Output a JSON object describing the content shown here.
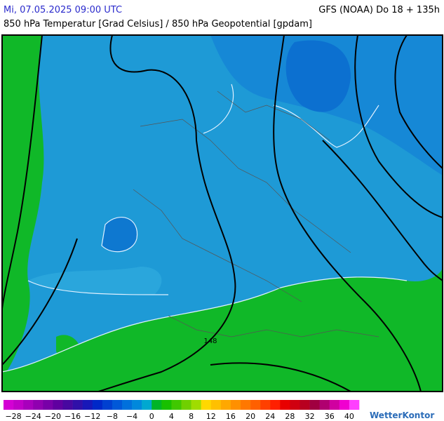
{
  "header": {
    "valid_time": "Mi, 07.05.2025 09:00 UTC",
    "model_run": "GFS (NOAA) Do 18 + 135h",
    "parameter": "850 hPa Temperatur [Grad Celsius] / 850 hPa Geopotential [gpdam]"
  },
  "map": {
    "contour_labels": [
      "148"
    ]
  },
  "colorbar": {
    "range": [
      -30,
      42
    ],
    "colors": [
      "#d400d4",
      "#c000c8",
      "#a800bc",
      "#9000b0",
      "#7800a8",
      "#6000a0",
      "#4808a0",
      "#3010a8",
      "#1818b8",
      "#0028c8",
      "#0040d0",
      "#0058d8",
      "#0070dc",
      "#0088dc",
      "#00a8d0",
      "#00b428",
      "#18c000",
      "#40c800",
      "#70d000",
      "#a0dc00",
      "#ffd800",
      "#ffc000",
      "#ffa800",
      "#ff9000",
      "#ff7800",
      "#ff6000",
      "#ff4000",
      "#ff2000",
      "#e80000",
      "#d00010",
      "#b80020",
      "#a00040",
      "#b00070",
      "#d000a0",
      "#f000d0",
      "#ff40ff"
    ],
    "ticks": [
      {
        "value": -28,
        "label": "−28"
      },
      {
        "value": -24,
        "label": "−24"
      },
      {
        "value": -20,
        "label": "−20"
      },
      {
        "value": -16,
        "label": "−16"
      },
      {
        "value": -12,
        "label": "−12"
      },
      {
        "value": -8,
        "label": "−8"
      },
      {
        "value": -4,
        "label": "−4"
      },
      0,
      4,
      8,
      12,
      16,
      20,
      24,
      28,
      32,
      36,
      40
    ]
  },
  "logo": "WetterKontor"
}
